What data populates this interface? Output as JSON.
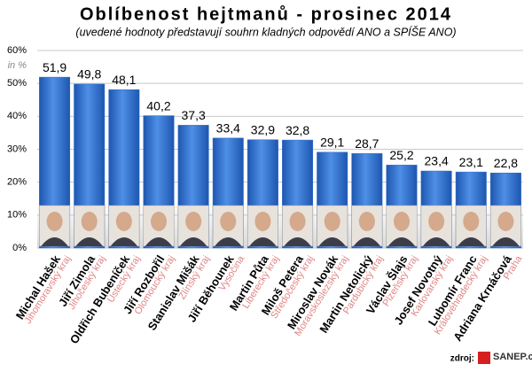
{
  "chart_data": {
    "type": "bar",
    "title": "Oblíbenost hejtmanů - prosinec 2014",
    "subtitle": "(uvedené hodnoty představují souhrn kladných odpovědí ANO a SPÍŠE ANO)",
    "y_unit_label": "in %",
    "categories": [
      "Michal Hašek",
      "Jiří Zimola",
      "Oldřich Bubeníček",
      "Jiří Rozbořil",
      "Stanislav Mišák",
      "Jiří Běhounek",
      "Martin Půta",
      "Miloš Petera",
      "Miroslav Novák",
      "Martin Netolický",
      "Václav Šlajs",
      "Josef Novotný",
      "Lubomír Franc",
      "Adriana Krnáčová"
    ],
    "regions": [
      "Jihomoravský kraj",
      "Jihočeský kraj",
      "Ústecký kraj",
      "Olomoucký kraj",
      "Zlínský kraj",
      "Vysočina",
      "Liberecký kraj",
      "Středočeský kraj",
      "Moravskoslezský kraj",
      "Pardubický kraj",
      "Plzeňský kraj",
      "Karlovarský kraj",
      "Královéhradecký kraj",
      "Praha"
    ],
    "values": [
      51.9,
      49.8,
      48.1,
      40.2,
      37.3,
      33.4,
      32.9,
      32.8,
      29.1,
      28.7,
      25.2,
      23.4,
      23.1,
      22.8
    ],
    "value_labels": [
      "51,9",
      "49,8",
      "48,1",
      "40,2",
      "37,3",
      "33,4",
      "32,9",
      "32,8",
      "29,1",
      "28,7",
      "25,2",
      "23,4",
      "23,1",
      "22,8"
    ],
    "color": "#2f6fc9",
    "ylim": [
      0,
      60
    ],
    "yticks": [
      {
        "value": 0,
        "label": "0%"
      },
      {
        "value": 10,
        "label": "10%"
      },
      {
        "value": 20,
        "label": "20%"
      },
      {
        "value": 30,
        "label": "30%"
      },
      {
        "value": 40,
        "label": "40%"
      },
      {
        "value": 50,
        "label": "50%"
      },
      {
        "value": 60,
        "label": "60%"
      }
    ],
    "grid": true,
    "source_label": "zdroj:",
    "source": "SANEP.cz"
  }
}
